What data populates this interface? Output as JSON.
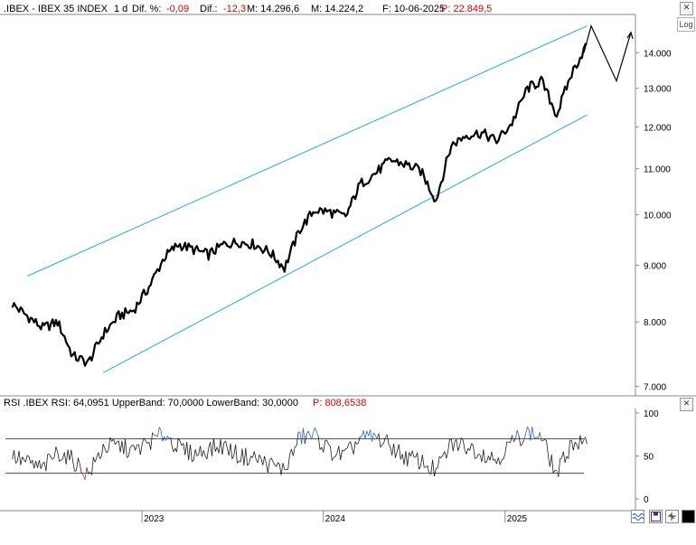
{
  "header": {
    "symbol": ".IBEX - IBEX 35 INDEX",
    "interval": "1 d",
    "dif_pct_label": "Dif. %:",
    "dif_pct_value": "-0,09",
    "dif_label": "Dif.:",
    "dif_value": "-12,3",
    "m_label": "M:",
    "m_value": "14.296,6",
    "m_value_display": "M: 14.296,6",
    "m_low": "M: 14.224,2",
    "f_label": "F: 10-06-2025",
    "p_label": "P: 22.849,5"
  },
  "rsi_header": {
    "text": "RSI .IBEX RSI: 64,0951 UpperBand: 70,0000 LowerBand: 30,0000",
    "p_label": "P: 808,6538"
  },
  "log_button": "Log",
  "icons": {
    "close": "close-icon",
    "wave": "wave-icon",
    "floppy": "save-icon",
    "pin": "pin-icon",
    "black_square": "square-icon"
  },
  "colors": {
    "price_line": "#000000",
    "channel": "#27a9d8",
    "rsi_line": "#1f1f1f",
    "rsi_over": "#2c64c8",
    "rsi_under": "#c83232",
    "band": "#555555",
    "red_text": "#d40000",
    "grid_axis": "#888888"
  },
  "chart_data": [
    {
      "type": "line",
      "title": ".IBEX - IBEX 35 INDEX",
      "scale": "log",
      "ylim": [
        6900,
        15100
      ],
      "y_ticks": [
        "14.000",
        "13.000",
        "12.000",
        "11.000",
        "10.000",
        "9.000",
        "8.000",
        "7.000"
      ],
      "y_tick_values": [
        14000,
        13000,
        12000,
        11000,
        10000,
        9000,
        8000,
        7000
      ],
      "x_tick_labels": [
        "2023",
        "2024",
        "2025"
      ],
      "x_tick_dates": [
        "2023-01",
        "2024-01",
        "2025-01"
      ],
      "series": [
        {
          "x": [
            "2022-04",
            "2022-05",
            "2022-06",
            "2022-07",
            "2022-08",
            "2022-09",
            "2022-10",
            "2022-11",
            "2022-12",
            "2023-01",
            "2023-02",
            "2023-03",
            "2023-04",
            "2023-05",
            "2023-06",
            "2023-07",
            "2023-08",
            "2023-09",
            "2023-10",
            "2023-11",
            "2023-12",
            "2024-01",
            "2024-02",
            "2024-03",
            "2024-04",
            "2024-05",
            "2024-06",
            "2024-07",
            "2024-08",
            "2024-09",
            "2024-10",
            "2024-11",
            "2024-12",
            "2025-01",
            "2025-02",
            "2025-03",
            "2025-04",
            "2025-05",
            "2025-06"
          ],
          "y": [
            8300,
            8100,
            7900,
            8000,
            7450,
            7350,
            7800,
            8100,
            8200,
            8600,
            9150,
            9400,
            9300,
            9200,
            9400,
            9450,
            9400,
            9250,
            8950,
            9700,
            10100,
            10050,
            9950,
            10650,
            10900,
            11200,
            11100,
            10950,
            10300,
            11550,
            11800,
            11850,
            11650,
            12100,
            13000,
            13200,
            12300,
            13400,
            14250
          ]
        }
      ],
      "channel_lines": [
        {
          "x": [
            "2022-05",
            "2025-06"
          ],
          "y": [
            8800,
            14800
          ]
        },
        {
          "x": [
            "2022-10",
            "2025-06"
          ],
          "y": [
            7200,
            12300
          ]
        }
      ],
      "projection": {
        "x": [
          "2025-06",
          "2025-06",
          "2025-07",
          "2025-08",
          "2025-09"
        ],
        "y": [
          14000,
          14800,
          13200,
          13200,
          14600
        ]
      }
    },
    {
      "type": "line",
      "title": "RSI .IBEX",
      "ylim": [
        0,
        100
      ],
      "y_ticks": [
        "100",
        "50",
        "0"
      ],
      "y_tick_values": [
        100,
        50,
        0
      ],
      "bands": {
        "upper": 70,
        "lower": 30
      },
      "series": [
        {
          "name": "RSI",
          "x": [
            "2022-04",
            "2022-05",
            "2022-06",
            "2022-07",
            "2022-08",
            "2022-09",
            "2022-10",
            "2022-11",
            "2022-12",
            "2023-01",
            "2023-02",
            "2023-03",
            "2023-04",
            "2023-05",
            "2023-06",
            "2023-07",
            "2023-08",
            "2023-09",
            "2023-10",
            "2023-11",
            "2023-12",
            "2024-01",
            "2024-02",
            "2024-03",
            "2024-04",
            "2024-05",
            "2024-06",
            "2024-07",
            "2024-08",
            "2024-09",
            "2024-10",
            "2024-11",
            "2024-12",
            "2025-01",
            "2025-02",
            "2025-03",
            "2025-04",
            "2025-05",
            "2025-06"
          ],
          "y": [
            50,
            42,
            35,
            55,
            45,
            28,
            60,
            62,
            55,
            66,
            76,
            60,
            52,
            58,
            62,
            50,
            48,
            40,
            34,
            72,
            74,
            55,
            50,
            70,
            72,
            62,
            48,
            44,
            32,
            64,
            62,
            54,
            46,
            66,
            78,
            72,
            28,
            66,
            64
          ]
        }
      ]
    }
  ]
}
